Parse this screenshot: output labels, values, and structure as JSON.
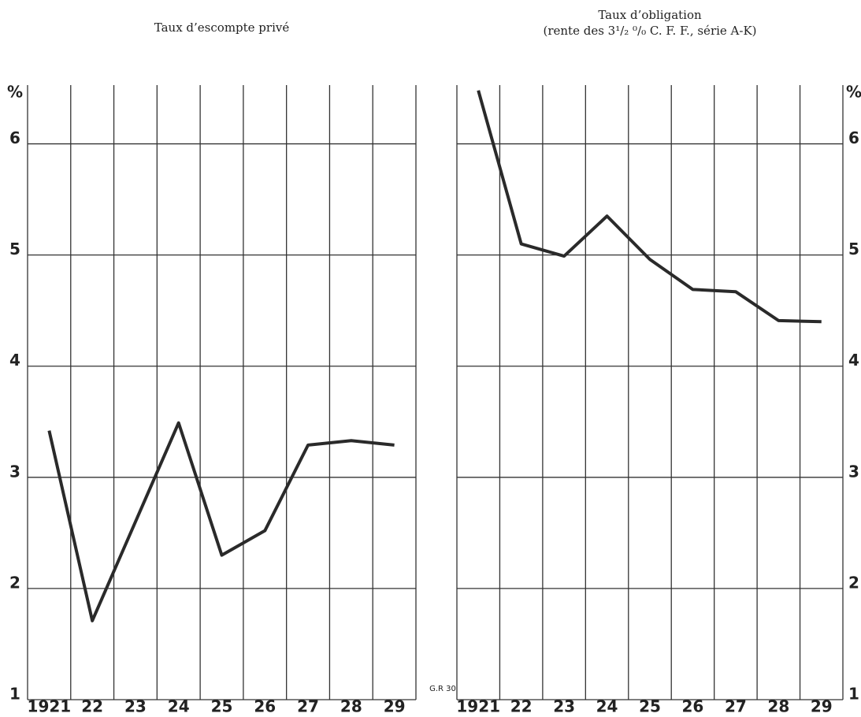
{
  "chart_data": [
    {
      "type": "line",
      "title": "Taux d’escompte privé",
      "categories": [
        "1921",
        "22",
        "23",
        "24",
        "25",
        "26",
        "27",
        "28",
        "29"
      ],
      "values": [
        3.42,
        1.71,
        2.6,
        3.49,
        2.3,
        2.52,
        3.29,
        3.33,
        3.29
      ],
      "ylim": [
        1,
        6.5
      ],
      "yticks": [
        1,
        2,
        3,
        4,
        5,
        6
      ],
      "y_unit": "%",
      "y_axis_side": "left",
      "color": "#2a2a2a",
      "grid": true,
      "annotation": "G.R 30"
    },
    {
      "type": "line",
      "title": "Taux d’obligation",
      "subtitle": "(rente des 3¹/₂ ⁰/₀ C. F. F., série A-K)",
      "categories": [
        "1921",
        "22",
        "23",
        "24",
        "25",
        "26",
        "27",
        "28",
        "29"
      ],
      "values": [
        6.48,
        5.1,
        4.99,
        5.35,
        4.96,
        4.69,
        4.67,
        4.41,
        4.4
      ],
      "ylim": [
        1,
        6.5
      ],
      "yticks": [
        1,
        2,
        3,
        4,
        5,
        6
      ],
      "y_unit": "%",
      "y_axis_side": "right",
      "color": "#2a2a2a",
      "grid": true
    }
  ]
}
